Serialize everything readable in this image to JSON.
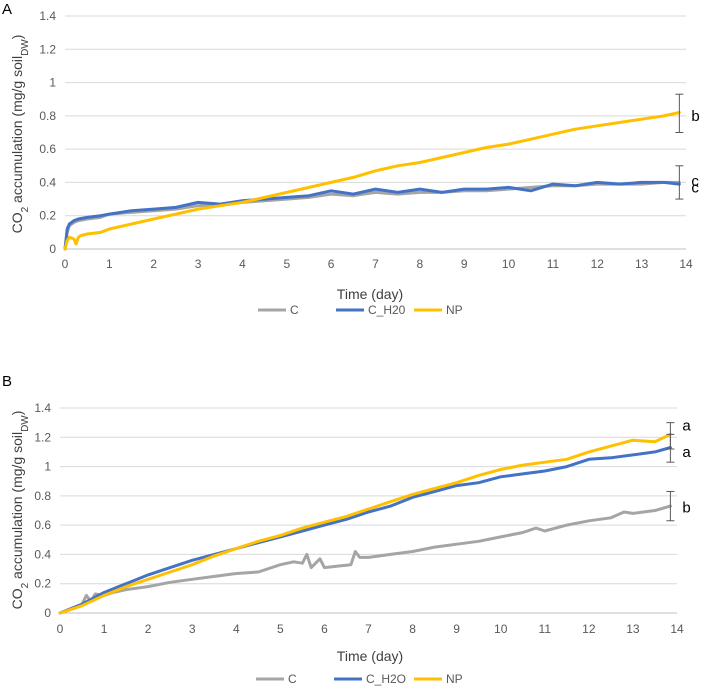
{
  "chart_data": [
    {
      "panel": "A",
      "type": "line",
      "title": "",
      "xlabel": "Time (day)",
      "ylabel_parts": {
        "base": "CO",
        "sub": "2",
        "mid": " accumulation (mg/g soil",
        "sub2": "DW",
        "end": ")"
      },
      "xlim": [
        0,
        14
      ],
      "ylim": [
        0,
        1.4
      ],
      "xticks": [
        0,
        1,
        2,
        3,
        4,
        5,
        6,
        7,
        8,
        9,
        10,
        11,
        12,
        13,
        14
      ],
      "yticks": [
        0,
        0.2,
        0.4,
        0.6,
        0.8,
        1,
        1.2,
        1.4
      ],
      "ytick_labels": [
        "0",
        "0.2",
        "0.4",
        "0.6",
        "0.8",
        "1",
        "1.2",
        "1.4"
      ],
      "xtick_labels": [
        "0",
        "1",
        "2",
        "3",
        "4",
        "5",
        "6",
        "7",
        "8",
        "9",
        "10",
        "11",
        "12",
        "13",
        "14"
      ],
      "grid": "horizontal",
      "legend_position": "bottom",
      "series": [
        {
          "name": "C",
          "color": "#a5a5a5",
          "x": [
            0,
            0.05,
            0.1,
            0.2,
            0.3,
            0.5,
            0.8,
            1,
            1.5,
            2,
            2.5,
            3,
            3.5,
            4,
            4.5,
            5,
            5.5,
            6,
            6.5,
            7,
            7.5,
            8,
            8.5,
            9,
            9.5,
            10,
            10.5,
            11,
            11.5,
            12,
            12.5,
            13,
            13.5,
            13.85
          ],
          "values": [
            0,
            0.1,
            0.14,
            0.16,
            0.17,
            0.18,
            0.19,
            0.21,
            0.22,
            0.23,
            0.24,
            0.26,
            0.27,
            0.28,
            0.29,
            0.3,
            0.31,
            0.33,
            0.32,
            0.34,
            0.33,
            0.34,
            0.34,
            0.35,
            0.35,
            0.36,
            0.37,
            0.38,
            0.38,
            0.39,
            0.39,
            0.39,
            0.4,
            0.4
          ]
        },
        {
          "name": "C_H20",
          "color": "#4472c4",
          "x": [
            0,
            0.05,
            0.1,
            0.2,
            0.3,
            0.5,
            0.8,
            1,
            1.5,
            2,
            2.5,
            3,
            3.5,
            4,
            4.5,
            5,
            5.5,
            6,
            6.5,
            7,
            7.5,
            8,
            8.5,
            9,
            9.5,
            10,
            10.5,
            11,
            11.5,
            12,
            12.5,
            13,
            13.5,
            13.85
          ],
          "values": [
            0,
            0.12,
            0.15,
            0.17,
            0.18,
            0.19,
            0.2,
            0.21,
            0.23,
            0.24,
            0.25,
            0.28,
            0.27,
            0.29,
            0.3,
            0.31,
            0.32,
            0.35,
            0.33,
            0.36,
            0.34,
            0.36,
            0.34,
            0.36,
            0.36,
            0.37,
            0.35,
            0.39,
            0.38,
            0.4,
            0.39,
            0.4,
            0.4,
            0.39
          ]
        },
        {
          "name": "NP",
          "color": "#ffc000",
          "x": [
            0,
            0.05,
            0.1,
            0.2,
            0.25,
            0.3,
            0.35,
            0.5,
            0.8,
            1,
            1.5,
            2,
            2.5,
            3,
            3.5,
            4,
            4.5,
            5,
            5.5,
            6,
            6.5,
            7,
            7.5,
            8,
            8.5,
            9,
            9.5,
            10,
            10.5,
            11,
            11.5,
            12,
            12.5,
            13,
            13.5,
            13.85
          ],
          "values": [
            0,
            0.05,
            0.07,
            0.06,
            0.03,
            0.07,
            0.08,
            0.09,
            0.1,
            0.12,
            0.15,
            0.18,
            0.21,
            0.24,
            0.26,
            0.28,
            0.31,
            0.34,
            0.37,
            0.4,
            0.43,
            0.47,
            0.5,
            0.52,
            0.55,
            0.58,
            0.61,
            0.63,
            0.66,
            0.69,
            0.72,
            0.74,
            0.76,
            0.78,
            0.8,
            0.82
          ]
        }
      ],
      "error_bars": [
        {
          "x": 13.85,
          "low": 0.7,
          "high": 0.93
        },
        {
          "x": 13.85,
          "low": 0.3,
          "high": 0.5
        }
      ],
      "annotations": [
        {
          "text": "b",
          "x": 13.85,
          "y": 0.8
        },
        {
          "text": "c",
          "x": 13.85,
          "y": 0.41
        },
        {
          "text": "c",
          "x": 13.85,
          "y": 0.37
        }
      ]
    },
    {
      "panel": "B",
      "type": "line",
      "title": "",
      "xlabel": "Time (day)",
      "ylabel_parts": {
        "base": "CO",
        "sub": "2",
        "mid": " accumulation (mg/g soil",
        "sub2": "DW",
        "end": ")"
      },
      "xlim": [
        0,
        14
      ],
      "ylim": [
        0,
        1.4
      ],
      "xticks": [
        0,
        1,
        2,
        3,
        4,
        5,
        6,
        7,
        8,
        9,
        10,
        11,
        12,
        13,
        14
      ],
      "yticks": [
        0,
        0.2,
        0.4,
        0.6,
        0.8,
        1,
        1.2,
        1.4
      ],
      "ytick_labels": [
        "0",
        "0.2",
        "0.4",
        "0.6",
        "0.8",
        "1",
        "1.2",
        "1.4"
      ],
      "xtick_labels": [
        "0",
        "1",
        "2",
        "3",
        "4",
        "5",
        "6",
        "7",
        "8",
        "9",
        "10",
        "11",
        "12",
        "13",
        "14"
      ],
      "grid": "horizontal",
      "legend_position": "bottom",
      "series": [
        {
          "name": "C",
          "color": "#a5a5a5",
          "x": [
            0,
            0.3,
            0.5,
            0.6,
            0.7,
            0.8,
            1,
            1.2,
            1.5,
            2,
            2.5,
            3,
            3.5,
            4,
            4.5,
            5,
            5.3,
            5.5,
            5.6,
            5.7,
            5.9,
            6,
            6.3,
            6.6,
            6.7,
            6.8,
            7,
            7.5,
            8,
            8.5,
            9,
            9.5,
            10,
            10.5,
            10.8,
            11,
            11.5,
            12,
            12.5,
            12.8,
            13,
            13.5,
            13.85
          ],
          "values": [
            0,
            0.03,
            0.06,
            0.12,
            0.08,
            0.13,
            0.12,
            0.14,
            0.16,
            0.18,
            0.21,
            0.23,
            0.25,
            0.27,
            0.28,
            0.33,
            0.35,
            0.34,
            0.4,
            0.31,
            0.37,
            0.31,
            0.32,
            0.33,
            0.42,
            0.38,
            0.38,
            0.4,
            0.42,
            0.45,
            0.47,
            0.49,
            0.52,
            0.55,
            0.58,
            0.56,
            0.6,
            0.63,
            0.65,
            0.69,
            0.68,
            0.7,
            0.73
          ]
        },
        {
          "name": "C_H2O",
          "color": "#4472c4",
          "x": [
            0,
            0.5,
            1,
            1.5,
            2,
            2.5,
            3,
            3.5,
            4,
            4.5,
            5,
            5.5,
            6,
            6.5,
            7,
            7.5,
            8,
            8.5,
            9,
            9.5,
            10,
            10.5,
            11,
            11.5,
            12,
            12.5,
            13,
            13.5,
            13.85
          ],
          "values": [
            0,
            0.06,
            0.14,
            0.2,
            0.26,
            0.31,
            0.36,
            0.4,
            0.44,
            0.48,
            0.52,
            0.56,
            0.6,
            0.64,
            0.69,
            0.73,
            0.79,
            0.83,
            0.87,
            0.89,
            0.93,
            0.95,
            0.97,
            1.0,
            1.05,
            1.06,
            1.08,
            1.1,
            1.13
          ]
        },
        {
          "name": "NP",
          "color": "#ffc000",
          "x": [
            0,
            0.5,
            1,
            1.5,
            2,
            2.5,
            3,
            3.5,
            4,
            4.5,
            5,
            5.5,
            6,
            6.5,
            7,
            7.5,
            8,
            8.5,
            9,
            9.5,
            10,
            10.5,
            11,
            11.5,
            12,
            12.5,
            13,
            13.5,
            13.85
          ],
          "values": [
            0,
            0.05,
            0.12,
            0.18,
            0.23,
            0.28,
            0.33,
            0.39,
            0.44,
            0.49,
            0.53,
            0.58,
            0.62,
            0.66,
            0.71,
            0.76,
            0.81,
            0.85,
            0.89,
            0.94,
            0.98,
            1.01,
            1.03,
            1.05,
            1.1,
            1.14,
            1.18,
            1.17,
            1.22
          ]
        }
      ],
      "error_bars": [
        {
          "x": 13.85,
          "low": 1.12,
          "high": 1.3
        },
        {
          "x": 13.85,
          "low": 1.03,
          "high": 1.22
        },
        {
          "x": 13.85,
          "low": 0.63,
          "high": 0.83
        }
      ],
      "annotations": [
        {
          "text": "a",
          "x": 13.85,
          "y": 1.28
        },
        {
          "text": "a",
          "x": 13.85,
          "y": 1.1
        },
        {
          "text": "b",
          "x": 13.85,
          "y": 0.72
        }
      ]
    }
  ]
}
